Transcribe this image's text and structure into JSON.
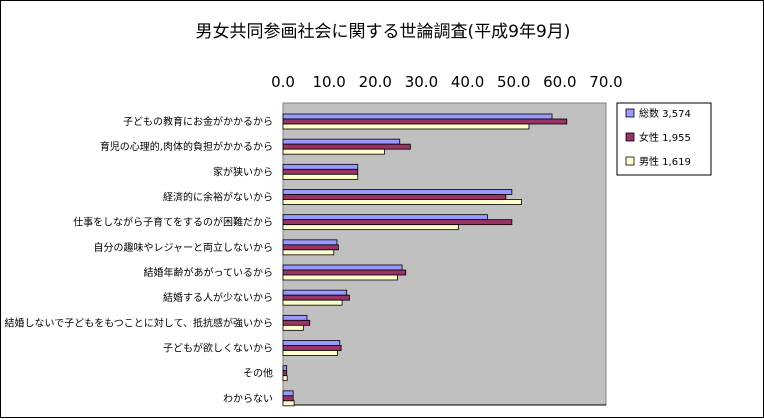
{
  "chart_data": {
    "type": "bar",
    "orientation": "horizontal",
    "title": "男女共同参画社会に関する世論調査(平成9年9月)",
    "xlabel": "",
    "ylabel": "",
    "xlim": [
      0,
      70
    ],
    "x_ticks": [
      "0.0",
      "10.0",
      "20.0",
      "30.0",
      "40.0",
      "50.0",
      "60.0",
      "70.0"
    ],
    "x_tick_position": "top",
    "grid": false,
    "legend_position": "right",
    "categories": [
      "子どもの教育にお金がかかるから",
      "育児の心理的,肉体的負担がかかるから",
      "家が狭いから",
      "経済的に余裕がないから",
      "仕事をしながら子育てをするのが困難だから",
      "自分の趣味やレジャーと両立しないから",
      "結婚年齢があがっているから",
      "結婚する人が少ないから",
      "結婚しないで子どもをもつことに対して、抵抗感が強いから",
      "子どもが欲しくないから",
      "その他",
      "わからない"
    ],
    "series": [
      {
        "name": "総数 3,574",
        "color": "#9999ff",
        "values": [
          58.3,
          25.3,
          16.2,
          49.6,
          44.3,
          11.7,
          25.8,
          13.8,
          5.2,
          12.3,
          0.8,
          2.2
        ]
      },
      {
        "name": "女性 1,955",
        "color": "#993366",
        "values": [
          61.5,
          27.6,
          16.2,
          48.3,
          49.6,
          12.0,
          26.6,
          14.4,
          5.8,
          12.6,
          0.8,
          2.2
        ]
      },
      {
        "name": "男性 1,619",
        "color": "#ffffcc",
        "values": [
          53.3,
          22.0,
          16.2,
          51.7,
          38.0,
          11.0,
          24.8,
          12.8,
          4.4,
          11.8,
          0.9,
          2.4
        ]
      }
    ]
  }
}
